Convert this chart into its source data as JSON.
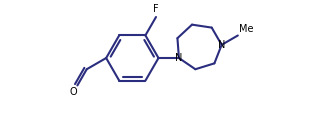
{
  "bg_color": "#ffffff",
  "line_color": "#2b2d7e",
  "text_color": "#000000",
  "lw": 1.5,
  "figsize": [
    3.12,
    1.26
  ],
  "dpi": 100,
  "labels": {
    "F": "F",
    "O": "O",
    "N1": "N",
    "N4": "N",
    "Me": "Me"
  },
  "xlim": [
    -1.0,
    10.5
  ],
  "ylim": [
    -0.5,
    4.5
  ]
}
